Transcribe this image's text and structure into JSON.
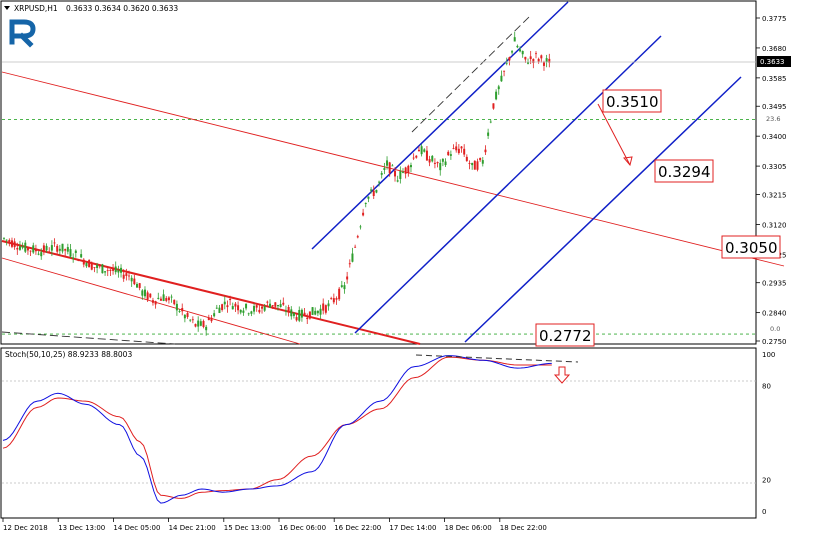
{
  "header": {
    "symbol": "XRPUSD,H1",
    "ohlc": "0.3633 0.3634 0.3620 0.3633"
  },
  "stoch_label": "Stoch(50,10,25) 88.9233 88.8003",
  "price_badge": "0.3633",
  "fib_labels": {
    "fib236": "23.6",
    "fib0": "0.0"
  },
  "levels": [
    {
      "label": "0.3510",
      "value": 0.351
    },
    {
      "label": "0.3294",
      "value": 0.3294
    },
    {
      "label": "0.3050",
      "value": 0.305
    },
    {
      "label": "0.2772",
      "value": 0.2772
    }
  ],
  "colors": {
    "bull": "#2e9e2e",
    "bear": "#e02020",
    "channel": "#1020c8",
    "red_line": "#e02020",
    "fib": "#33aa33",
    "stoch_main": "#1010e0",
    "stoch_signal": "#e02020"
  },
  "chart_data": {
    "type": "candlestick",
    "y_axis": {
      "ticks": [
        "0.3775",
        "0.3680",
        "0.3585",
        "0.3495",
        "0.3400",
        "0.3305",
        "0.3215",
        "0.3120",
        "0.3025",
        "0.2935",
        "0.2840",
        "0.2750"
      ],
      "ylim": [
        0.274,
        0.38
      ]
    },
    "x_axis": {
      "tick_labels": [
        "12 Dec 2018",
        "13 Dec 13:00",
        "14 Dec 05:00",
        "14 Dec 21:00",
        "15 Dec 13:00",
        "16 Dec 06:00",
        "16 Dec 22:00",
        "17 Dec 14:00",
        "18 Dec 06:00",
        "18 Dec 22:00"
      ]
    },
    "current_price": 0.3633,
    "fib_levels": [
      {
        "name": "23.6",
        "value": 0.3453
      },
      {
        "name": "0.0",
        "value": 0.2772
      }
    ],
    "price_path": [
      [
        0,
        0.3075
      ],
      [
        8,
        0.3045
      ],
      [
        14,
        0.3035
      ],
      [
        20,
        0.305
      ],
      [
        28,
        0.302
      ],
      [
        34,
        0.2985
      ],
      [
        40,
        0.2975
      ],
      [
        48,
        0.2955
      ],
      [
        52,
        0.2905
      ],
      [
        56,
        0.288
      ],
      [
        60,
        0.289
      ],
      [
        64,
        0.287
      ],
      [
        68,
        0.283
      ],
      [
        72,
        0.28
      ],
      [
        76,
        0.28
      ],
      [
        80,
        0.285
      ],
      [
        84,
        0.2875
      ],
      [
        88,
        0.286
      ],
      [
        92,
        0.285
      ],
      [
        96,
        0.285
      ],
      [
        100,
        0.287
      ],
      [
        104,
        0.286
      ],
      [
        110,
        0.283
      ],
      [
        116,
        0.284
      ],
      [
        122,
        0.286
      ],
      [
        128,
        0.292
      ],
      [
        132,
        0.305
      ],
      [
        136,
        0.32
      ],
      [
        140,
        0.323
      ],
      [
        144,
        0.331
      ],
      [
        148,
        0.327
      ],
      [
        152,
        0.33
      ],
      [
        156,
        0.336
      ],
      [
        160,
        0.333
      ],
      [
        164,
        0.33
      ],
      [
        168,
        0.335
      ],
      [
        172,
        0.336
      ],
      [
        176,
        0.33
      ],
      [
        180,
        0.332
      ],
      [
        184,
        0.35
      ],
      [
        188,
        0.36
      ],
      [
        192,
        0.37
      ],
      [
        196,
        0.364
      ],
      [
        200,
        0.365
      ],
      [
        205,
        0.3633
      ]
    ],
    "stochastic": {
      "name": "Stoch(50,10,25)",
      "main_value": 88.9233,
      "signal_value": 88.8003,
      "levels": [
        80,
        20
      ],
      "ticks": [
        "100",
        "80",
        "20",
        "0"
      ],
      "main": [
        [
          0,
          45
        ],
        [
          10,
          70
        ],
        [
          16,
          75
        ],
        [
          24,
          68
        ],
        [
          34,
          55
        ],
        [
          40,
          35
        ],
        [
          46,
          5
        ],
        [
          52,
          10
        ],
        [
          58,
          14
        ],
        [
          64,
          12
        ],
        [
          72,
          14
        ],
        [
          80,
          16
        ],
        [
          90,
          25
        ],
        [
          100,
          55
        ],
        [
          110,
          70
        ],
        [
          120,
          92
        ],
        [
          130,
          99
        ],
        [
          140,
          96
        ],
        [
          150,
          91
        ],
        [
          160,
          94
        ]
      ],
      "signal": [
        [
          0,
          40
        ],
        [
          10,
          66
        ],
        [
          16,
          72
        ],
        [
          24,
          70
        ],
        [
          34,
          60
        ],
        [
          40,
          44
        ],
        [
          46,
          10
        ],
        [
          52,
          8
        ],
        [
          58,
          12
        ],
        [
          64,
          13
        ],
        [
          72,
          14
        ],
        [
          80,
          20
        ],
        [
          90,
          35
        ],
        [
          100,
          55
        ],
        [
          110,
          65
        ],
        [
          120,
          85
        ],
        [
          130,
          98
        ],
        [
          140,
          96
        ],
        [
          150,
          93
        ],
        [
          160,
          93
        ]
      ]
    }
  }
}
